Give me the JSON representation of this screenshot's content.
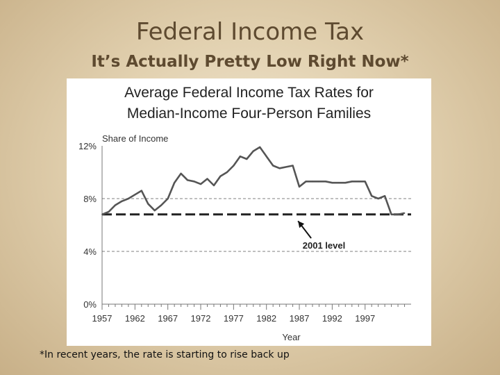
{
  "slide": {
    "title": "Federal Income Tax",
    "subtitle": "It’s Actually Pretty Low Right Now*",
    "footnote": "*In recent years, the rate is starting to rise back up"
  },
  "colors": {
    "background": "#e2d1b0",
    "title_text": "#5e4a30",
    "line": "#555555",
    "reference_line": "#222222"
  },
  "chart_data": {
    "type": "line",
    "title": "Average Federal Income Tax Rates for Median-Income Four-Person Families",
    "title_lines": [
      "Average Federal Income Tax Rates for",
      "Median-Income Four-Person Families"
    ],
    "ylabel": "Share of Income",
    "xlabel": "Year",
    "xlim": [
      1957,
      2004
    ],
    "ylim": [
      0,
      12
    ],
    "x_ticks": [
      1957,
      1962,
      1967,
      1972,
      1977,
      1982,
      1987,
      1992,
      1997
    ],
    "y_ticks": [
      {
        "value": 0,
        "label": "0%"
      },
      {
        "value": 4,
        "label": "4%"
      },
      {
        "value": 8,
        "label": "8%"
      },
      {
        "value": 12,
        "label": "12%"
      }
    ],
    "grid": "dashed horizontal at 4% and 8%",
    "reference_line": {
      "value": 6.8,
      "label": "2001 level"
    },
    "annotation_arrow": {
      "from_x": 1988.8,
      "from_y": 5.0,
      "to_x": 1986.8,
      "to_y": 6.3
    },
    "series": [
      {
        "x": [
          1957,
          1958,
          1959,
          1960,
          1961,
          1962,
          1963,
          1964,
          1965,
          1966,
          1967,
          1968,
          1969,
          1970,
          1971,
          1972,
          1973,
          1974,
          1975,
          1976,
          1977,
          1978,
          1979,
          1980,
          1981,
          1982,
          1983,
          1984,
          1985,
          1986,
          1987,
          1988,
          1989,
          1990,
          1991,
          1992,
          1993,
          1994,
          1995,
          1996,
          1997,
          1998,
          1999,
          2000,
          2001,
          2002,
          2003
        ],
        "values": [
          6.8,
          7.0,
          7.5,
          7.8,
          8.0,
          8.3,
          8.6,
          7.6,
          7.1,
          7.5,
          8.0,
          9.2,
          9.9,
          9.4,
          9.3,
          9.1,
          9.5,
          9.0,
          9.7,
          10.0,
          10.5,
          11.2,
          11.0,
          11.6,
          11.9,
          11.2,
          10.5,
          10.3,
          10.4,
          10.5,
          8.9,
          9.3,
          9.3,
          9.3,
          9.3,
          9.2,
          9.2,
          9.2,
          9.3,
          9.3,
          9.3,
          8.2,
          8.0,
          8.2,
          6.8,
          6.8,
          6.9
        ]
      }
    ]
  }
}
